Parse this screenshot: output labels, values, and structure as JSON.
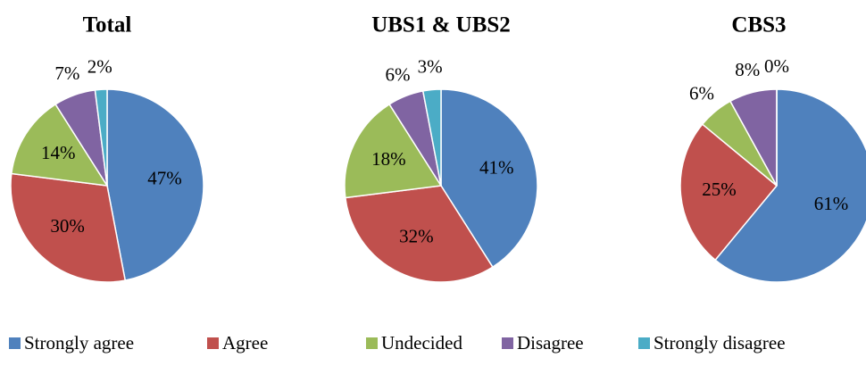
{
  "legend": {
    "categories": [
      "Strongly agree",
      "Agree",
      "Undecided",
      "Disagree",
      "Strongly disagree"
    ],
    "colors": [
      "#4f81bd",
      "#c0504d",
      "#9bbb59",
      "#8064a2",
      "#4bacc6"
    ]
  },
  "chart_data": [
    {
      "type": "pie",
      "title": "Total",
      "values": [
        47,
        30,
        14,
        7,
        2
      ],
      "value_labels": [
        "47%",
        "30%",
        "14%",
        "7%",
        "2%"
      ]
    },
    {
      "type": "pie",
      "title": "UBS1 & UBS2",
      "values": [
        41,
        32,
        18,
        6,
        3
      ],
      "value_labels": [
        "41%",
        "32%",
        "18%",
        "6%",
        "3%"
      ]
    },
    {
      "type": "pie",
      "title": "CBS3",
      "values": [
        61,
        25,
        6,
        8,
        0
      ],
      "value_labels": [
        "61%",
        "25%",
        "6%",
        "8%",
        "0%"
      ]
    }
  ]
}
